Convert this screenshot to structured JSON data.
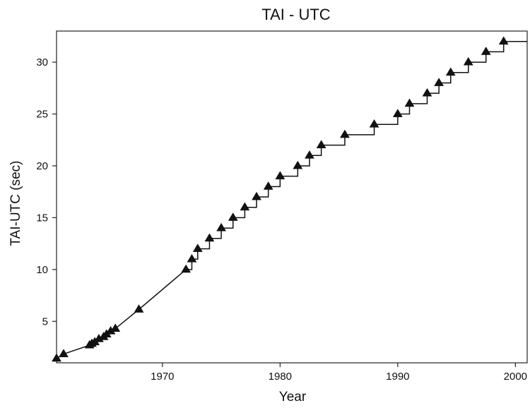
{
  "chart_data": {
    "type": "line",
    "title": "TAI - UTC",
    "xlabel": "Year",
    "ylabel": "TAI-UTC (sec)",
    "xlim": [
      1961,
      2001
    ],
    "ylim": [
      1,
      33
    ],
    "xticks": [
      1970,
      1980,
      1990,
      2000
    ],
    "yticks": [
      5,
      10,
      15,
      20,
      25,
      30
    ],
    "grid": false,
    "legend": "none",
    "line_style": "pre-1972 linear segments, post-1972 steps",
    "series": [
      {
        "marker": "triangle",
        "color": "#111111",
        "x": [
          1961.0,
          1961.6,
          1963.8,
          1964.0,
          1964.25,
          1964.6,
          1965.0,
          1965.25,
          1965.6,
          1966.0,
          1968.0,
          1972.0,
          1972.5,
          1973.0,
          1974.0,
          1975.0,
          1976.0,
          1977.0,
          1978.0,
          1979.0,
          1980.0,
          1981.5,
          1982.5,
          1983.5,
          1985.5,
          1988.0,
          1990.0,
          1991.0,
          1992.5,
          1993.5,
          1994.5,
          1996.0,
          1997.5,
          1999.0
        ],
        "y": [
          1.42,
          1.85,
          2.7,
          2.85,
          3.0,
          3.3,
          3.5,
          3.75,
          4.05,
          4.3,
          6.15,
          10,
          11,
          12,
          13,
          14,
          15,
          16,
          17,
          18,
          19,
          20,
          21,
          22,
          23,
          24,
          25,
          26,
          27,
          28,
          29,
          30,
          31,
          32
        ]
      }
    ]
  }
}
